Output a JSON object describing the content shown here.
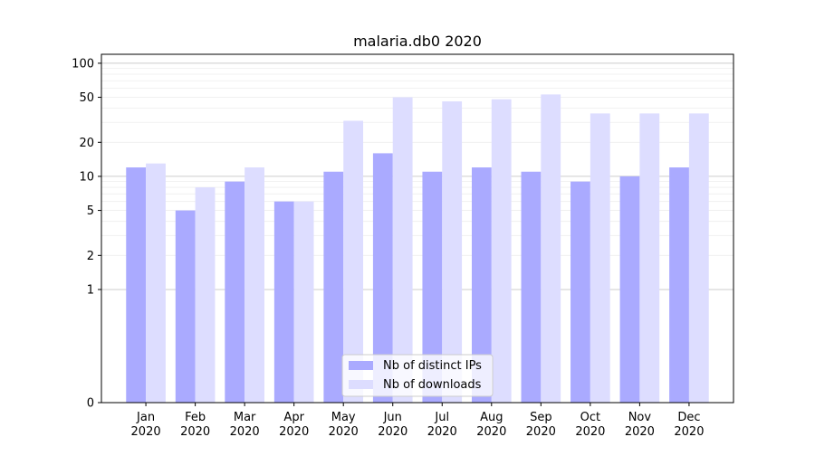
{
  "chart_data": {
    "type": "bar",
    "title": "malaria.db0 2020",
    "xlabel": "",
    "ylabel": "",
    "y_scale": "symlog",
    "ylim": [
      0,
      120
    ],
    "y_ticks": [
      0,
      1,
      2,
      5,
      10,
      20,
      50,
      100
    ],
    "y_tick_labels": [
      "0",
      "1",
      "2",
      "5",
      "10",
      "20",
      "50",
      "100"
    ],
    "categories": [
      "Jan\n2020",
      "Feb\n2020",
      "Mar\n2020",
      "Apr\n2020",
      "May\n2020",
      "Jun\n2020",
      "Jul\n2020",
      "Aug\n2020",
      "Sep\n2020",
      "Oct\n2020",
      "Nov\n2020",
      "Dec\n2020"
    ],
    "series": [
      {
        "name": "Nb of distinct IPs",
        "color": "#aaaaff",
        "values": [
          12,
          5,
          9,
          6,
          11,
          16,
          11,
          12,
          11,
          9,
          10,
          12
        ]
      },
      {
        "name": "Nb of downloads",
        "color": "#ddddff",
        "values": [
          13,
          8,
          12,
          6,
          31,
          50,
          46,
          48,
          53,
          36,
          36,
          36
        ]
      }
    ],
    "grid": true,
    "legend_position": "bottom-center"
  }
}
